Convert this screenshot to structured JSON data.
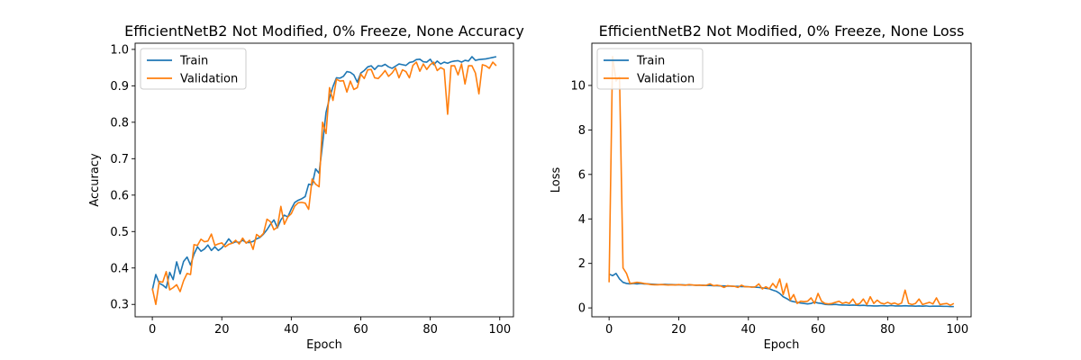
{
  "chart_data": [
    {
      "type": "line",
      "title": "EfficientNetB2 Not Modified, 0% Freeze, None Accuracy",
      "xlabel": "Epoch",
      "ylabel": "Accuracy",
      "xlim": [
        -4.95,
        103.95
      ],
      "ylim": [
        0.266,
        1.017
      ],
      "xticks": [
        0,
        20,
        40,
        60,
        80,
        100
      ],
      "yticks": [
        0.3,
        0.4,
        0.5,
        0.6,
        0.7,
        0.8,
        0.9,
        1.0
      ],
      "ytick_labels": [
        "0.3",
        "0.4",
        "0.5",
        "0.6",
        "0.7",
        "0.8",
        "0.9",
        "1.0"
      ],
      "legend": "upper-left",
      "series": [
        {
          "name": "Train",
          "color": "#1f77b4",
          "values": [
            0.339,
            0.382,
            0.358,
            0.353,
            0.345,
            0.388,
            0.368,
            0.417,
            0.384,
            0.418,
            0.43,
            0.408,
            0.438,
            0.458,
            0.446,
            0.452,
            0.463,
            0.448,
            0.458,
            0.448,
            0.455,
            0.466,
            0.48,
            0.468,
            0.472,
            0.47,
            0.476,
            0.47,
            0.47,
            0.473,
            0.48,
            0.484,
            0.493,
            0.505,
            0.52,
            0.532,
            0.51,
            0.532,
            0.545,
            0.54,
            0.562,
            0.58,
            0.586,
            0.59,
            0.596,
            0.63,
            0.628,
            0.672,
            0.66,
            0.74,
            0.827,
            0.866,
            0.898,
            0.922,
            0.921,
            0.926,
            0.939,
            0.937,
            0.93,
            0.91,
            0.935,
            0.942,
            0.952,
            0.955,
            0.945,
            0.955,
            0.954,
            0.959,
            0.952,
            0.948,
            0.954,
            0.96,
            0.958,
            0.956,
            0.964,
            0.966,
            0.972,
            0.973,
            0.966,
            0.965,
            0.973,
            0.958,
            0.968,
            0.96,
            0.965,
            0.962,
            0.966,
            0.968,
            0.969,
            0.965,
            0.97,
            0.968,
            0.98,
            0.97,
            0.972,
            0.973,
            0.974,
            0.976,
            0.978,
            0.98
          ]
        },
        {
          "name": "Validation",
          "color": "#ff7f0e",
          "values": [
            0.344,
            0.3,
            0.363,
            0.361,
            0.39,
            0.34,
            0.346,
            0.354,
            0.335,
            0.365,
            0.385,
            0.382,
            0.464,
            0.462,
            0.479,
            0.472,
            0.474,
            0.493,
            0.462,
            0.466,
            0.469,
            0.458,
            0.465,
            0.468,
            0.476,
            0.466,
            0.482,
            0.468,
            0.476,
            0.451,
            0.492,
            0.485,
            0.495,
            0.534,
            0.527,
            0.505,
            0.512,
            0.569,
            0.52,
            0.54,
            0.549,
            0.57,
            0.579,
            0.58,
            0.578,
            0.561,
            0.644,
            0.63,
            0.623,
            0.8,
            0.769,
            0.895,
            0.86,
            0.918,
            0.913,
            0.914,
            0.883,
            0.913,
            0.89,
            0.895,
            0.932,
            0.92,
            0.944,
            0.945,
            0.922,
            0.92,
            0.93,
            0.942,
            0.926,
            0.935,
            0.949,
            0.922,
            0.944,
            0.939,
            0.922,
            0.956,
            0.965,
            0.94,
            0.96,
            0.945,
            0.958,
            0.965,
            0.942,
            0.95,
            0.945,
            0.822,
            0.955,
            0.955,
            0.93,
            0.96,
            0.905,
            0.955,
            0.955,
            0.935,
            0.878,
            0.958,
            0.955,
            0.948,
            0.965,
            0.955
          ]
        }
      ]
    },
    {
      "type": "line",
      "title": "EfficientNetB2 Not Modified, 0% Freeze, None Loss",
      "xlabel": "Epoch",
      "ylabel": "Loss",
      "xlim": [
        -4.95,
        103.95
      ],
      "ylim": [
        -0.4,
        11.9
      ],
      "xticks": [
        0,
        20,
        40,
        60,
        80,
        100
      ],
      "yticks": [
        0,
        2,
        4,
        6,
        8,
        10
      ],
      "ytick_labels": [
        "0",
        "2",
        "4",
        "6",
        "8",
        "10"
      ],
      "legend": "upper-left",
      "series": [
        {
          "name": "Train",
          "color": "#1f77b4",
          "values": [
            1.52,
            1.45,
            1.55,
            1.3,
            1.15,
            1.1,
            1.08,
            1.1,
            1.08,
            1.1,
            1.08,
            1.08,
            1.07,
            1.06,
            1.05,
            1.05,
            1.06,
            1.05,
            1.05,
            1.04,
            1.04,
            1.04,
            1.03,
            1.03,
            1.03,
            1.02,
            1.02,
            1.02,
            1.01,
            1.01,
            1.0,
            1.0,
            0.99,
            0.99,
            0.98,
            0.98,
            0.97,
            0.97,
            0.96,
            0.96,
            0.95,
            0.94,
            0.93,
            0.92,
            0.9,
            0.88,
            0.86,
            0.8,
            0.75,
            0.65,
            0.5,
            0.42,
            0.32,
            0.28,
            0.25,
            0.22,
            0.2,
            0.18,
            0.2,
            0.26,
            0.22,
            0.2,
            0.16,
            0.15,
            0.15,
            0.16,
            0.14,
            0.13,
            0.13,
            0.12,
            0.13,
            0.12,
            0.11,
            0.12,
            0.1,
            0.1,
            0.09,
            0.09,
            0.1,
            0.1,
            0.09,
            0.11,
            0.09,
            0.09,
            0.09,
            0.1,
            0.09,
            0.09,
            0.08,
            0.09,
            0.08,
            0.09,
            0.07,
            0.08,
            0.08,
            0.08,
            0.07,
            0.07,
            0.06,
            0.06
          ]
        },
        {
          "name": "Validation",
          "color": "#ff7f0e",
          "values": [
            1.15,
            11.3,
            10.2,
            10.4,
            1.8,
            1.55,
            1.1,
            1.12,
            1.15,
            1.13,
            1.1,
            1.08,
            1.05,
            1.04,
            1.04,
            1.05,
            1.04,
            1.03,
            1.04,
            1.03,
            1.05,
            1.03,
            1.02,
            1.05,
            1.03,
            1.02,
            1.03,
            1.01,
            1.02,
            1.08,
            1.0,
            1.02,
            0.99,
            0.92,
            1.0,
            0.98,
            0.97,
            0.92,
            1.02,
            0.95,
            0.95,
            0.93,
            0.95,
            1.08,
            0.85,
            0.95,
            0.86,
            1.1,
            0.9,
            1.3,
            0.6,
            1.1,
            0.35,
            0.6,
            0.2,
            0.3,
            0.28,
            0.3,
            0.45,
            0.2,
            0.65,
            0.3,
            0.2,
            0.18,
            0.2,
            0.25,
            0.3,
            0.2,
            0.25,
            0.2,
            0.4,
            0.15,
            0.2,
            0.4,
            0.15,
            0.5,
            0.2,
            0.35,
            0.22,
            0.18,
            0.25,
            0.18,
            0.22,
            0.15,
            0.22,
            0.8,
            0.2,
            0.15,
            0.2,
            0.4,
            0.15,
            0.2,
            0.25,
            0.18,
            0.45,
            0.15,
            0.18,
            0.2,
            0.12,
            0.2
          ]
        }
      ]
    }
  ]
}
